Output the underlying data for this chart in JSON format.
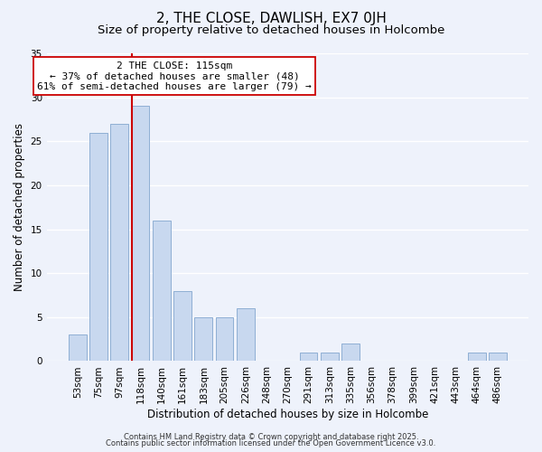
{
  "title": "2, THE CLOSE, DAWLISH, EX7 0JH",
  "subtitle": "Size of property relative to detached houses in Holcombe",
  "xlabel": "Distribution of detached houses by size in Holcombe",
  "ylabel": "Number of detached properties",
  "bar_labels": [
    "53sqm",
    "75sqm",
    "97sqm",
    "118sqm",
    "140sqm",
    "161sqm",
    "183sqm",
    "205sqm",
    "226sqm",
    "248sqm",
    "270sqm",
    "291sqm",
    "313sqm",
    "335sqm",
    "356sqm",
    "378sqm",
    "399sqm",
    "421sqm",
    "443sqm",
    "464sqm",
    "486sqm"
  ],
  "bar_values": [
    3,
    26,
    27,
    29,
    16,
    8,
    5,
    5,
    6,
    0,
    0,
    1,
    1,
    2,
    0,
    0,
    0,
    0,
    0,
    1,
    1
  ],
  "bar_color": "#c8d8ef",
  "bar_edge_color": "#8fafd4",
  "vline_color": "#cc0000",
  "vline_pos": 2.575,
  "ylim": [
    0,
    35
  ],
  "yticks": [
    0,
    5,
    10,
    15,
    20,
    25,
    30,
    35
  ],
  "annotation_title": "2 THE CLOSE: 115sqm",
  "annotation_line1": "← 37% of detached houses are smaller (48)",
  "annotation_line2": "61% of semi-detached houses are larger (79) →",
  "annotation_box_color": "#ffffff",
  "annotation_box_edge": "#cc0000",
  "footer1": "Contains HM Land Registry data © Crown copyright and database right 2025.",
  "footer2": "Contains public sector information licensed under the Open Government Licence v3.0.",
  "background_color": "#eef2fb",
  "grid_color": "#ffffff",
  "title_fontsize": 11,
  "subtitle_fontsize": 9.5,
  "axis_label_fontsize": 8.5,
  "tick_fontsize": 7.5,
  "annotation_fontsize": 8,
  "footer_fontsize": 6
}
